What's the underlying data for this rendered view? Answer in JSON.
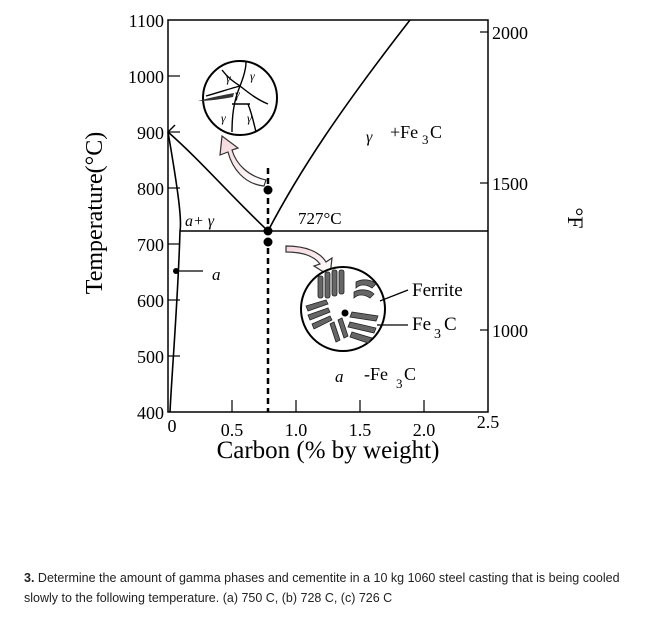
{
  "diagram": {
    "y_label": "Temperature(°C)",
    "y_label_right": "°F",
    "x_label": "Carbon (% by weight)",
    "x_ticks": [
      "0",
      "0.5",
      "1.0",
      "1.5",
      "2.0",
      "2.5"
    ],
    "y_ticks": [
      "400",
      "500",
      "600",
      "700",
      "800",
      "900",
      "1000",
      "1100"
    ],
    "f_ticks": [
      "1000",
      "1500",
      "2000"
    ],
    "regions": {
      "gamma_cementite_sym": "γ",
      "gamma_cementite_phase": "+Fe",
      "gamma_cementite_sub": "3",
      "gamma_cementite_end": "C",
      "alpha_gamma": "a+ γ",
      "alpha": "a",
      "alpha_cementite_sym": "a",
      "alpha_cementite_phase": "-Fe",
      "alpha_cementite_sub": "3",
      "alpha_cementite_end": "C"
    },
    "eutectoid_label": "727°C",
    "callouts": {
      "ferrite": "Ferrite",
      "fe3c_prefix": "Fe",
      "fe3c_sub": "3",
      "fe3c_suffix": "C"
    },
    "grain_labels": [
      "γ",
      "γ",
      "γ",
      "γ",
      "γ"
    ]
  },
  "question": {
    "number": "3.",
    "text": "Determine the amount of gamma phases and cementite in a 10 kg 1060 steel casting that is being cooled slowly to the following temperature. (a) 750 C, (b) 728 C, (c) 726 C"
  }
}
